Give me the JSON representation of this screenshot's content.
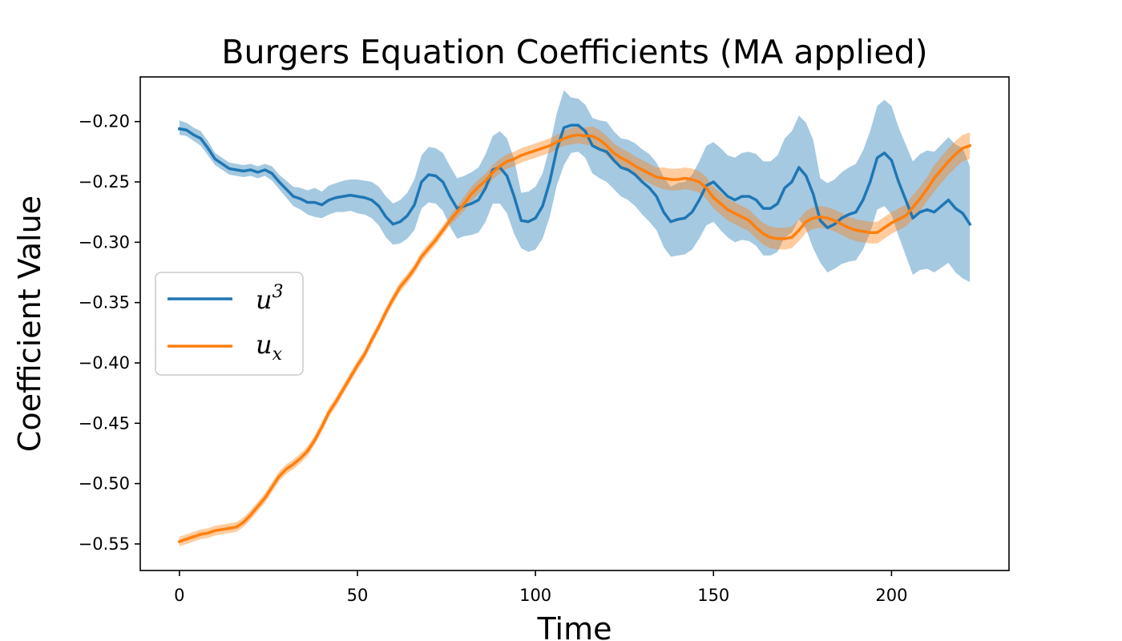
{
  "chart_data": {
    "type": "line",
    "title": "Burgers Equation Coefficients (MA applied)",
    "xlabel": "Time",
    "ylabel": "Coefficient Value",
    "xlim": [
      -11,
      233
    ],
    "ylim": [
      -0.572,
      -0.163
    ],
    "xticks": [
      0,
      50,
      100,
      150,
      200
    ],
    "xtick_labels": [
      "0",
      "50",
      "100",
      "150",
      "200"
    ],
    "yticks": [
      -0.55,
      -0.5,
      -0.45,
      -0.4,
      -0.35,
      -0.3,
      -0.25,
      -0.2
    ],
    "ytick_labels": [
      "−0.55",
      "−0.50",
      "−0.45",
      "−0.40",
      "−0.35",
      "−0.30",
      "−0.25",
      "−0.20"
    ],
    "grid": false,
    "legend_position": "center-left",
    "series": [
      {
        "name": "u^3",
        "legend_base": "u",
        "legend_sup": "3",
        "color": "#1f77b4",
        "band_color": "#1f77b4",
        "x": [
          0,
          2,
          4,
          6,
          8,
          10,
          12,
          14,
          16,
          18,
          20,
          22,
          24,
          26,
          28,
          30,
          32,
          34,
          36,
          38,
          40,
          42,
          44,
          46,
          48,
          50,
          52,
          54,
          56,
          58,
          60,
          62,
          64,
          66,
          68,
          70,
          72,
          74,
          76,
          78,
          80,
          82,
          84,
          86,
          88,
          90,
          92,
          94,
          96,
          98,
          100,
          102,
          104,
          106,
          108,
          110,
          112,
          114,
          116,
          118,
          120,
          122,
          124,
          126,
          128,
          130,
          132,
          134,
          136,
          138,
          140,
          142,
          144,
          146,
          148,
          150,
          152,
          154,
          156,
          158,
          160,
          162,
          164,
          166,
          168,
          170,
          172,
          174,
          176,
          178,
          180,
          182,
          184,
          186,
          188,
          190,
          192,
          194,
          196,
          198,
          200,
          202,
          204,
          206,
          208,
          210,
          212,
          214,
          216,
          218,
          220,
          222
        ],
        "y": [
          -0.206,
          -0.207,
          -0.211,
          -0.214,
          -0.222,
          -0.231,
          -0.235,
          -0.239,
          -0.24,
          -0.241,
          -0.24,
          -0.242,
          -0.24,
          -0.243,
          -0.25,
          -0.256,
          -0.262,
          -0.264,
          -0.267,
          -0.267,
          -0.269,
          -0.265,
          -0.263,
          -0.262,
          -0.261,
          -0.262,
          -0.263,
          -0.265,
          -0.27,
          -0.279,
          -0.285,
          -0.283,
          -0.278,
          -0.269,
          -0.25,
          -0.244,
          -0.245,
          -0.25,
          -0.262,
          -0.272,
          -0.27,
          -0.268,
          -0.265,
          -0.255,
          -0.24,
          -0.238,
          -0.245,
          -0.262,
          -0.282,
          -0.283,
          -0.28,
          -0.27,
          -0.25,
          -0.223,
          -0.205,
          -0.203,
          -0.203,
          -0.208,
          -0.22,
          -0.223,
          -0.225,
          -0.232,
          -0.238,
          -0.24,
          -0.244,
          -0.25,
          -0.255,
          -0.262,
          -0.275,
          -0.283,
          -0.281,
          -0.28,
          -0.275,
          -0.265,
          -0.253,
          -0.25,
          -0.256,
          -0.262,
          -0.265,
          -0.262,
          -0.262,
          -0.265,
          -0.272,
          -0.272,
          -0.268,
          -0.255,
          -0.25,
          -0.238,
          -0.245,
          -0.26,
          -0.282,
          -0.288,
          -0.285,
          -0.28,
          -0.277,
          -0.275,
          -0.265,
          -0.25,
          -0.23,
          -0.226,
          -0.232,
          -0.25,
          -0.265,
          -0.28,
          -0.275,
          -0.273,
          -0.275,
          -0.27,
          -0.265,
          -0.272,
          -0.276,
          -0.285
        ],
        "lower": [
          -0.211,
          -0.212,
          -0.216,
          -0.22,
          -0.228,
          -0.236,
          -0.24,
          -0.244,
          -0.245,
          -0.246,
          -0.245,
          -0.247,
          -0.245,
          -0.249,
          -0.256,
          -0.263,
          -0.27,
          -0.273,
          -0.277,
          -0.279,
          -0.28,
          -0.277,
          -0.275,
          -0.275,
          -0.274,
          -0.276,
          -0.277,
          -0.28,
          -0.286,
          -0.296,
          -0.302,
          -0.301,
          -0.297,
          -0.29,
          -0.272,
          -0.267,
          -0.268,
          -0.274,
          -0.287,
          -0.297,
          -0.295,
          -0.294,
          -0.292,
          -0.283,
          -0.268,
          -0.268,
          -0.276,
          -0.293,
          -0.305,
          -0.308,
          -0.306,
          -0.297,
          -0.279,
          -0.253,
          -0.236,
          -0.226,
          -0.225,
          -0.23,
          -0.243,
          -0.247,
          -0.25,
          -0.256,
          -0.262,
          -0.265,
          -0.27,
          -0.277,
          -0.283,
          -0.29,
          -0.304,
          -0.312,
          -0.311,
          -0.31,
          -0.306,
          -0.297,
          -0.286,
          -0.283,
          -0.29,
          -0.296,
          -0.3,
          -0.298,
          -0.299,
          -0.303,
          -0.311,
          -0.311,
          -0.308,
          -0.296,
          -0.292,
          -0.281,
          -0.289,
          -0.305,
          -0.317,
          -0.325,
          -0.322,
          -0.318,
          -0.316,
          -0.315,
          -0.306,
          -0.292,
          -0.273,
          -0.27,
          -0.277,
          -0.295,
          -0.311,
          -0.327,
          -0.323,
          -0.322,
          -0.325,
          -0.321,
          -0.317,
          -0.325,
          -0.33,
          -0.333
        ],
        "upper": [
          -0.199,
          -0.201,
          -0.205,
          -0.208,
          -0.216,
          -0.226,
          -0.23,
          -0.234,
          -0.235,
          -0.236,
          -0.235,
          -0.237,
          -0.235,
          -0.237,
          -0.244,
          -0.249,
          -0.254,
          -0.255,
          -0.257,
          -0.255,
          -0.258,
          -0.253,
          -0.251,
          -0.249,
          -0.248,
          -0.248,
          -0.249,
          -0.25,
          -0.254,
          -0.262,
          -0.268,
          -0.265,
          -0.259,
          -0.248,
          -0.228,
          -0.221,
          -0.222,
          -0.226,
          -0.237,
          -0.247,
          -0.245,
          -0.242,
          -0.238,
          -0.227,
          -0.212,
          -0.208,
          -0.214,
          -0.231,
          -0.259,
          -0.258,
          -0.254,
          -0.243,
          -0.221,
          -0.193,
          -0.174,
          -0.18,
          -0.181,
          -0.186,
          -0.197,
          -0.199,
          -0.2,
          -0.208,
          -0.214,
          -0.215,
          -0.218,
          -0.223,
          -0.227,
          -0.234,
          -0.246,
          -0.254,
          -0.251,
          -0.25,
          -0.244,
          -0.233,
          -0.22,
          -0.217,
          -0.222,
          -0.228,
          -0.23,
          -0.226,
          -0.225,
          -0.227,
          -0.233,
          -0.233,
          -0.228,
          -0.214,
          -0.208,
          -0.195,
          -0.201,
          -0.215,
          -0.247,
          -0.251,
          -0.248,
          -0.242,
          -0.238,
          -0.235,
          -0.224,
          -0.208,
          -0.187,
          -0.182,
          -0.187,
          -0.205,
          -0.219,
          -0.233,
          -0.227,
          -0.224,
          -0.225,
          -0.219,
          -0.213,
          -0.219,
          -0.222,
          -0.237
        ]
      },
      {
        "name": "u_x",
        "legend_base": "u",
        "legend_sub": "x",
        "color": "#ff7f0e",
        "band_color": "#ff7f0e",
        "x": [
          0,
          2,
          4,
          6,
          8,
          10,
          12,
          14,
          16,
          18,
          20,
          22,
          24,
          26,
          28,
          30,
          32,
          34,
          36,
          38,
          40,
          42,
          44,
          46,
          48,
          50,
          52,
          54,
          56,
          58,
          60,
          62,
          64,
          66,
          68,
          70,
          72,
          74,
          76,
          78,
          80,
          82,
          84,
          86,
          88,
          90,
          92,
          94,
          96,
          98,
          100,
          102,
          104,
          106,
          108,
          110,
          112,
          114,
          116,
          118,
          120,
          122,
          124,
          126,
          128,
          130,
          132,
          134,
          136,
          138,
          140,
          142,
          144,
          146,
          148,
          150,
          152,
          154,
          156,
          158,
          160,
          162,
          164,
          166,
          168,
          170,
          172,
          174,
          176,
          178,
          180,
          182,
          184,
          186,
          188,
          190,
          192,
          194,
          196,
          198,
          200,
          202,
          204,
          206,
          208,
          210,
          212,
          214,
          216,
          218,
          220,
          222
        ],
        "y": [
          -0.548,
          -0.546,
          -0.544,
          -0.542,
          -0.541,
          -0.539,
          -0.538,
          -0.537,
          -0.536,
          -0.532,
          -0.526,
          -0.519,
          -0.512,
          -0.503,
          -0.494,
          -0.488,
          -0.484,
          -0.479,
          -0.473,
          -0.464,
          -0.453,
          -0.441,
          -0.432,
          -0.422,
          -0.412,
          -0.402,
          -0.393,
          -0.381,
          -0.37,
          -0.358,
          -0.347,
          -0.337,
          -0.33,
          -0.322,
          -0.312,
          -0.305,
          -0.298,
          -0.29,
          -0.282,
          -0.275,
          -0.268,
          -0.26,
          -0.254,
          -0.249,
          -0.242,
          -0.237,
          -0.233,
          -0.231,
          -0.228,
          -0.226,
          -0.224,
          -0.222,
          -0.22,
          -0.217,
          -0.214,
          -0.212,
          -0.211,
          -0.212,
          -0.212,
          -0.215,
          -0.22,
          -0.226,
          -0.23,
          -0.233,
          -0.237,
          -0.24,
          -0.243,
          -0.246,
          -0.247,
          -0.248,
          -0.248,
          -0.247,
          -0.248,
          -0.25,
          -0.255,
          -0.263,
          -0.268,
          -0.273,
          -0.276,
          -0.279,
          -0.282,
          -0.288,
          -0.293,
          -0.296,
          -0.297,
          -0.297,
          -0.296,
          -0.29,
          -0.283,
          -0.28,
          -0.279,
          -0.28,
          -0.282,
          -0.285,
          -0.288,
          -0.29,
          -0.291,
          -0.292,
          -0.292,
          -0.288,
          -0.284,
          -0.281,
          -0.278,
          -0.271,
          -0.264,
          -0.256,
          -0.247,
          -0.24,
          -0.233,
          -0.227,
          -0.222,
          -0.22
        ],
        "lower": [
          -0.552,
          -0.55,
          -0.548,
          -0.546,
          -0.545,
          -0.543,
          -0.542,
          -0.541,
          -0.54,
          -0.536,
          -0.53,
          -0.523,
          -0.516,
          -0.507,
          -0.498,
          -0.492,
          -0.488,
          -0.483,
          -0.477,
          -0.468,
          -0.457,
          -0.445,
          -0.436,
          -0.426,
          -0.416,
          -0.406,
          -0.397,
          -0.385,
          -0.374,
          -0.362,
          -0.351,
          -0.341,
          -0.334,
          -0.326,
          -0.316,
          -0.309,
          -0.302,
          -0.294,
          -0.286,
          -0.28,
          -0.274,
          -0.266,
          -0.26,
          -0.255,
          -0.248,
          -0.243,
          -0.239,
          -0.237,
          -0.234,
          -0.232,
          -0.23,
          -0.228,
          -0.226,
          -0.223,
          -0.22,
          -0.219,
          -0.218,
          -0.219,
          -0.22,
          -0.223,
          -0.228,
          -0.234,
          -0.238,
          -0.241,
          -0.245,
          -0.248,
          -0.251,
          -0.254,
          -0.256,
          -0.257,
          -0.257,
          -0.256,
          -0.257,
          -0.259,
          -0.264,
          -0.272,
          -0.277,
          -0.282,
          -0.285,
          -0.288,
          -0.291,
          -0.297,
          -0.302,
          -0.305,
          -0.306,
          -0.306,
          -0.305,
          -0.299,
          -0.292,
          -0.289,
          -0.288,
          -0.289,
          -0.291,
          -0.294,
          -0.297,
          -0.299,
          -0.3,
          -0.301,
          -0.301,
          -0.297,
          -0.293,
          -0.29,
          -0.287,
          -0.281,
          -0.274,
          -0.266,
          -0.258,
          -0.251,
          -0.244,
          -0.238,
          -0.233,
          -0.231
        ],
        "upper": [
          -0.544,
          -0.542,
          -0.54,
          -0.538,
          -0.537,
          -0.535,
          -0.534,
          -0.533,
          -0.532,
          -0.528,
          -0.522,
          -0.515,
          -0.508,
          -0.499,
          -0.49,
          -0.484,
          -0.48,
          -0.475,
          -0.469,
          -0.46,
          -0.449,
          -0.437,
          -0.428,
          -0.418,
          -0.408,
          -0.398,
          -0.389,
          -0.377,
          -0.366,
          -0.354,
          -0.343,
          -0.333,
          -0.326,
          -0.318,
          -0.308,
          -0.301,
          -0.294,
          -0.286,
          -0.278,
          -0.27,
          -0.262,
          -0.254,
          -0.248,
          -0.243,
          -0.236,
          -0.231,
          -0.227,
          -0.225,
          -0.222,
          -0.22,
          -0.218,
          -0.216,
          -0.214,
          -0.211,
          -0.208,
          -0.205,
          -0.204,
          -0.205,
          -0.204,
          -0.207,
          -0.212,
          -0.218,
          -0.222,
          -0.225,
          -0.229,
          -0.232,
          -0.235,
          -0.238,
          -0.238,
          -0.239,
          -0.239,
          -0.238,
          -0.239,
          -0.241,
          -0.246,
          -0.254,
          -0.259,
          -0.264,
          -0.267,
          -0.27,
          -0.273,
          -0.279,
          -0.284,
          -0.287,
          -0.288,
          -0.288,
          -0.287,
          -0.281,
          -0.274,
          -0.271,
          -0.27,
          -0.271,
          -0.273,
          -0.276,
          -0.279,
          -0.281,
          -0.282,
          -0.283,
          -0.283,
          -0.279,
          -0.275,
          -0.272,
          -0.269,
          -0.261,
          -0.254,
          -0.246,
          -0.236,
          -0.229,
          -0.222,
          -0.216,
          -0.211,
          -0.209
        ]
      }
    ]
  }
}
